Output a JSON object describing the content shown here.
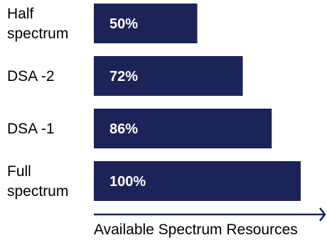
{
  "chart_data": {
    "type": "bar",
    "orientation": "horizontal",
    "categories": [
      [
        "Half",
        "spectrum"
      ],
      [
        "DSA -2"
      ],
      [
        "DSA -1"
      ],
      [
        "Full",
        "spectrum"
      ]
    ],
    "values": [
      50,
      72,
      86,
      100
    ],
    "data_labels": [
      "50%",
      "72%",
      "86%",
      "100%"
    ],
    "xlabel": "Available Spectrum Resources",
    "ylabel": "",
    "xlim": [
      0,
      100
    ],
    "grid": false,
    "legend": "none"
  },
  "colors": {
    "bar": "#1b2359",
    "bar_text": "#ffffff",
    "axis": "#1b2359",
    "text": "#000000"
  }
}
